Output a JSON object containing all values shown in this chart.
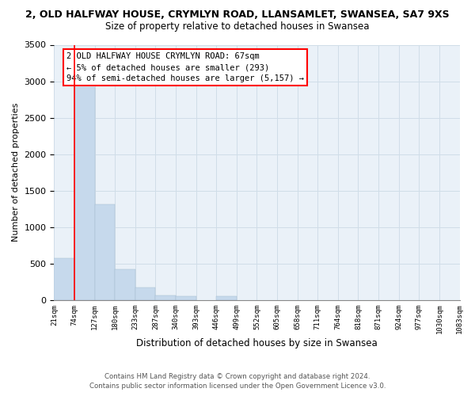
{
  "title_top": "2, OLD HALFWAY HOUSE, CRYMLYN ROAD, LLANSAMLET, SWANSEA, SA7 9XS",
  "title_sub": "Size of property relative to detached houses in Swansea",
  "xlabel": "Distribution of detached houses by size in Swansea",
  "ylabel": "Number of detached properties",
  "categories": [
    "21sqm",
    "74sqm",
    "127sqm",
    "180sqm",
    "233sqm",
    "287sqm",
    "340sqm",
    "393sqm",
    "446sqm",
    "499sqm",
    "552sqm",
    "605sqm",
    "658sqm",
    "711sqm",
    "764sqm",
    "818sqm",
    "871sqm",
    "924sqm",
    "977sqm",
    "1030sqm",
    "1083sqm"
  ],
  "values": [
    580,
    2920,
    1310,
    420,
    175,
    70,
    55,
    0,
    55,
    0,
    0,
    0,
    0,
    0,
    0,
    0,
    0,
    0,
    0,
    0,
    0
  ],
  "bar_color": "#c6d9ec",
  "marker_label_line1": "2 OLD HALFWAY HOUSE CRYMLYN ROAD: 67sqm",
  "marker_label_line2": "← 5% of detached houses are smaller (293)",
  "marker_label_line3": "94% of semi-detached houses are larger (5,157) →",
  "ylim": [
    0,
    3500
  ],
  "footnote1": "Contains HM Land Registry data © Crown copyright and database right 2024.",
  "footnote2": "Contains public sector information licensed under the Open Government Licence v3.0."
}
